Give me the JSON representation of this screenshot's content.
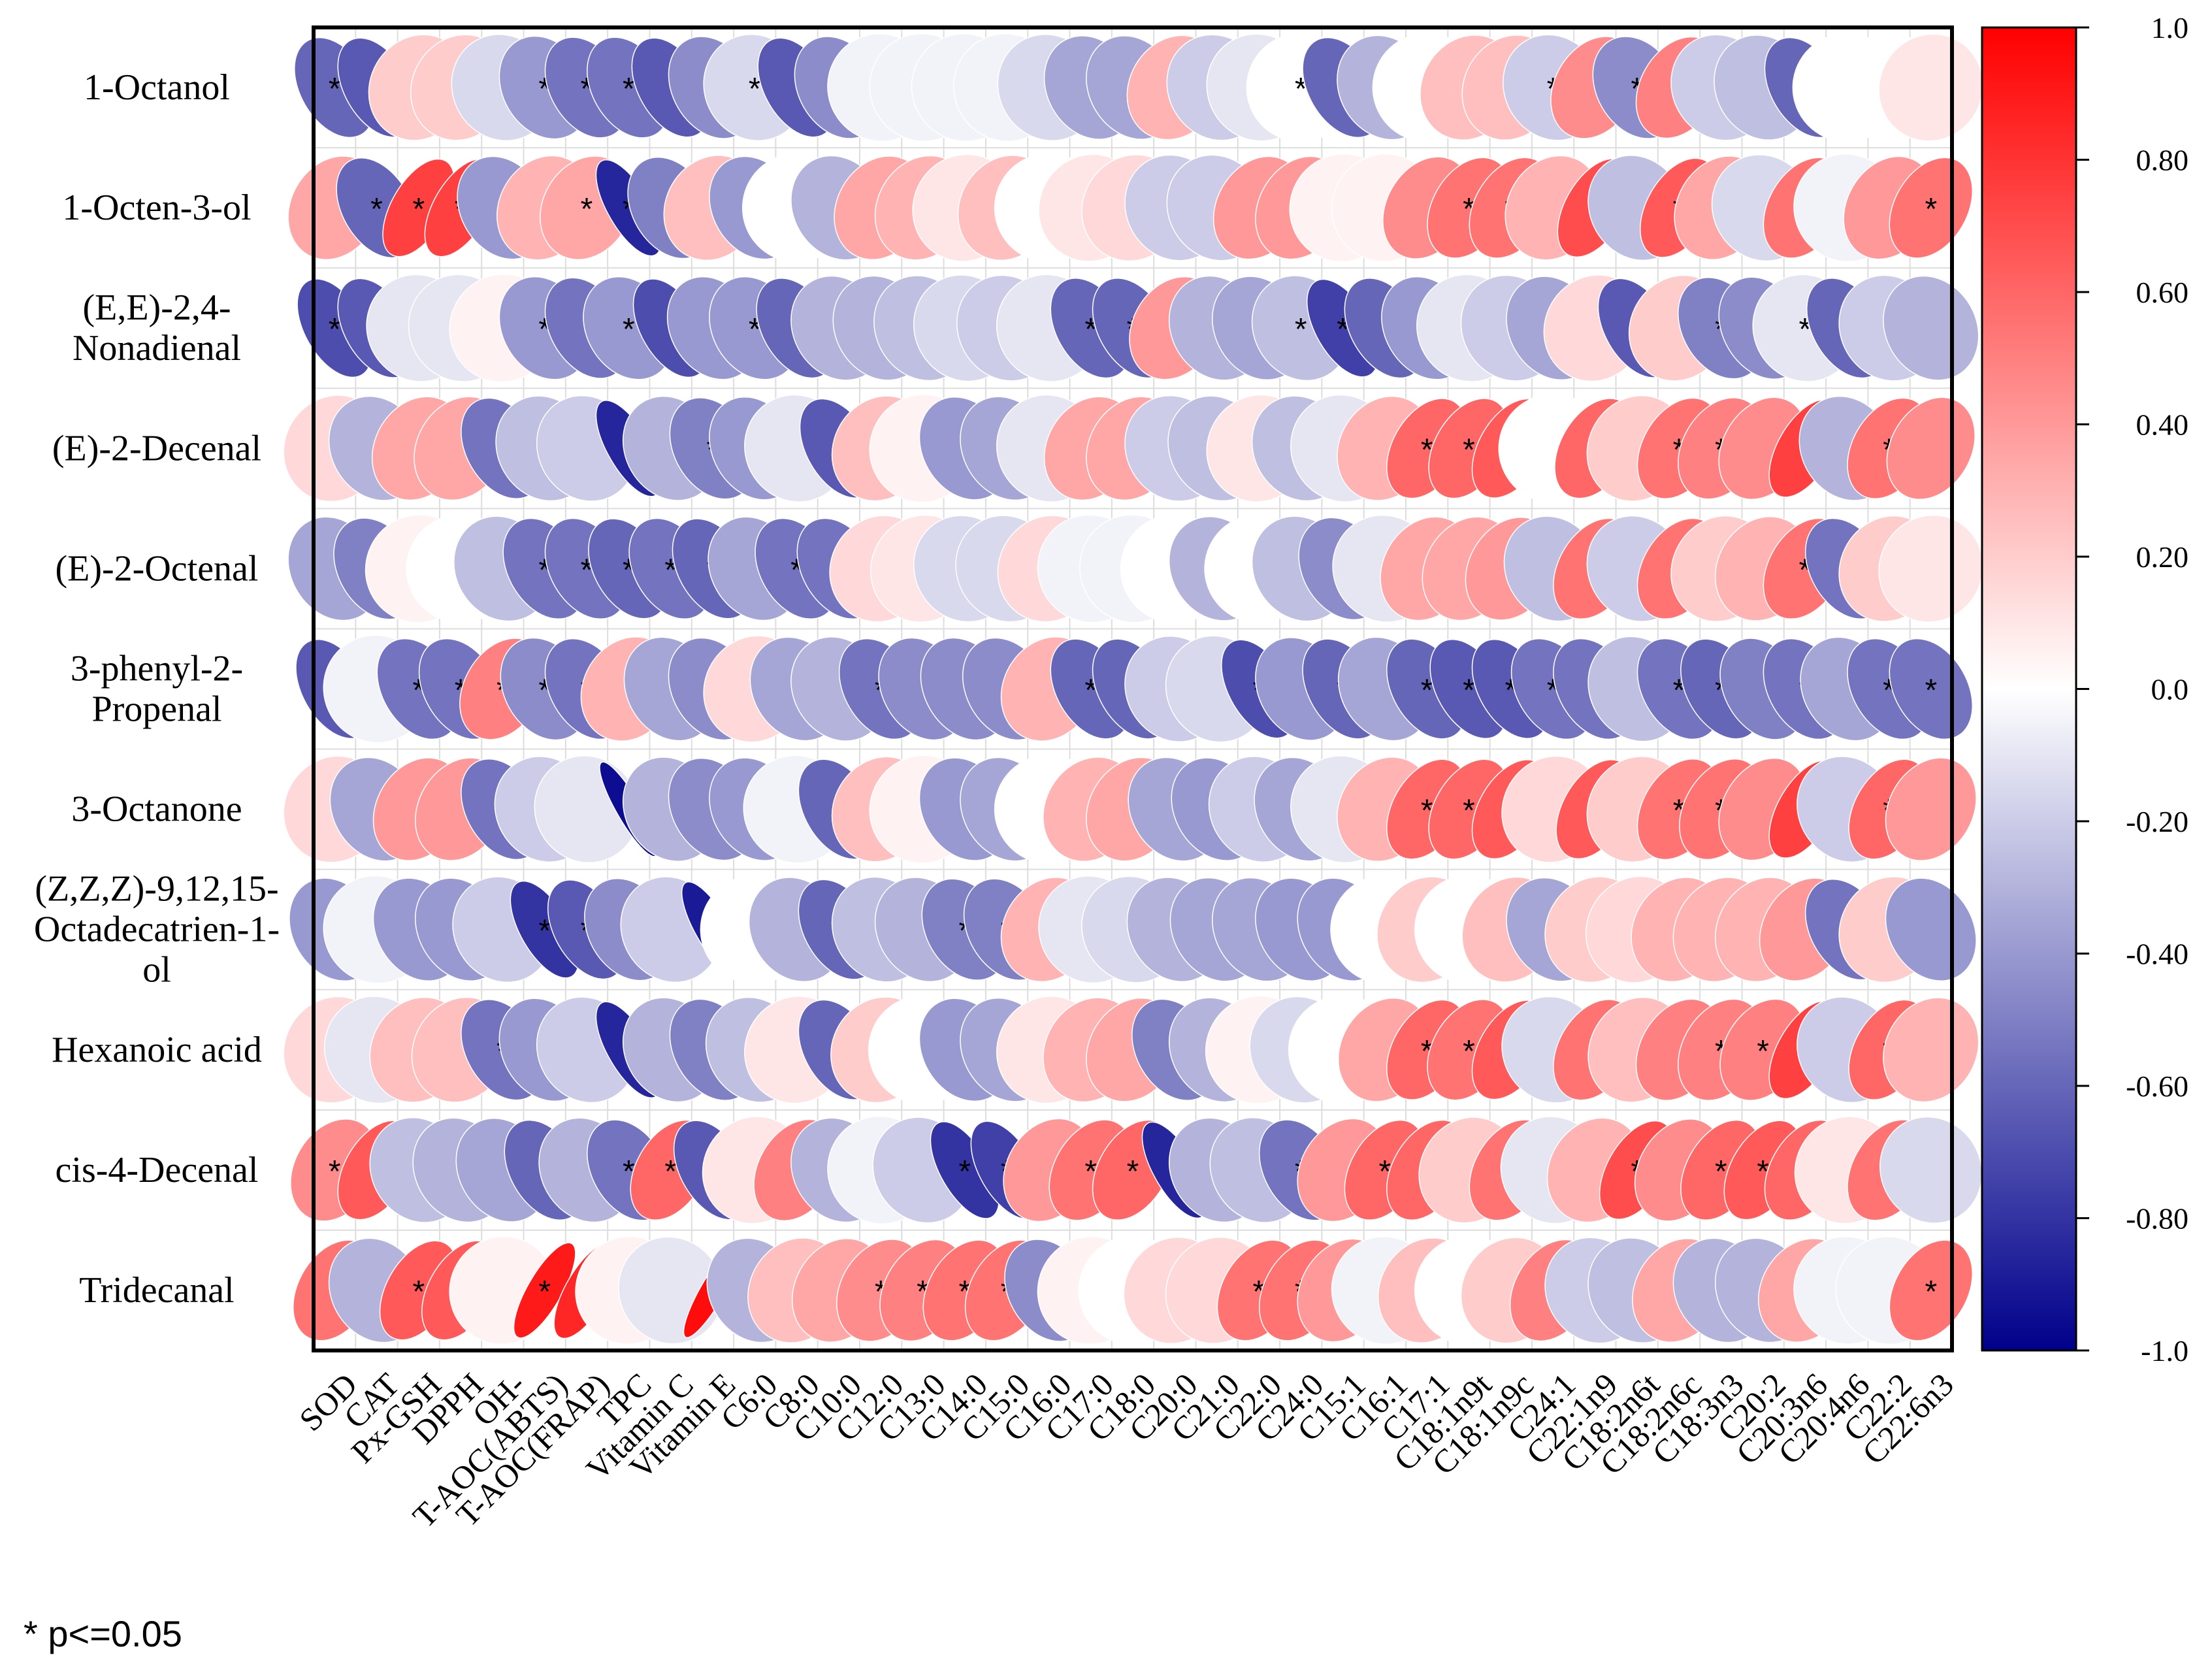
{
  "chart_data": {
    "type": "heatmap",
    "subtype": "correlation-ellipse",
    "rows": [
      "1-Octanol",
      "1-Octen-3-ol",
      "(E,E)-2,4-Nonadienal",
      "(E)-2-Decenal",
      "(E)-2-Octenal",
      "3-phenyl-2-Propenal",
      "3-Octanone",
      "(Z,Z,Z)-9,12,15-Octadecatrien-1-ol",
      "Hexanoic acid",
      "cis-4-Decenal",
      "Tridecanal"
    ],
    "row_label_lines": [
      [
        "1-Octanol"
      ],
      [
        "1-Octen-3-ol"
      ],
      [
        "(E,E)-2,4-",
        "Nonadienal"
      ],
      [
        "(E)-2-Decenal"
      ],
      [
        "(E)-2-Octenal"
      ],
      [
        "3-phenyl-2-",
        "Propenal"
      ],
      [
        "3-Octanone"
      ],
      [
        "(Z,Z,Z)-9,12,15-",
        "Octadecatrien-1-",
        "ol"
      ],
      [
        "Hexanoic acid"
      ],
      [
        "cis-4-Decenal"
      ],
      [
        "Tridecanal"
      ]
    ],
    "columns": [
      "SOD",
      "CAT",
      "Px-GSH",
      "DPPH",
      "OH-",
      "T-AOC(ABTS)",
      "T-AOC(FRAP)",
      "TPC",
      "Vitamin C",
      "Vitamin E",
      "C6:0",
      "C8:0",
      "C10:0",
      "C12:0",
      "C13:0",
      "C14:0",
      "C15:0",
      "C16:0",
      "C17:0",
      "C18:0",
      "C20:0",
      "C21:0",
      "C22:0",
      "C24:0",
      "C15:1",
      "C16:1",
      "C17:1",
      "C18:1n9t",
      "C18:1n9c",
      "C24:1",
      "C22:1n9",
      "C18:2n6t",
      "C18:2n6c",
      "C18:3n3",
      "C20:2",
      "C20:3n6",
      "C20:4n6",
      "C22:2",
      "C22:6n3"
    ],
    "values": [
      [
        -0.6,
        -0.65,
        0.2,
        0.2,
        -0.15,
        -0.4,
        -0.55,
        -0.55,
        -0.65,
        -0.45,
        -0.15,
        -0.65,
        -0.45,
        -0.05,
        -0.05,
        -0.05,
        -0.05,
        -0.15,
        -0.35,
        -0.35,
        0.3,
        -0.2,
        -0.1,
        0.0,
        -0.6,
        -0.3,
        0.0,
        0.25,
        0.25,
        -0.2,
        0.45,
        -0.45,
        0.5,
        -0.2,
        -0.25,
        -0.6,
        0.0,
        0.0,
        0.1
      ],
      [
        0.35,
        -0.6,
        0.75,
        0.75,
        -0.4,
        0.3,
        0.35,
        -0.85,
        -0.5,
        0.25,
        -0.4,
        0.0,
        -0.3,
        0.35,
        0.3,
        0.1,
        0.25,
        0.0,
        0.1,
        0.15,
        -0.2,
        -0.2,
        0.4,
        0.4,
        0.05,
        0.05,
        0.45,
        0.55,
        0.55,
        0.3,
        0.7,
        -0.25,
        0.65,
        0.35,
        -0.15,
        0.55,
        -0.05,
        0.4,
        0.55
      ],
      [
        -0.7,
        -0.65,
        -0.1,
        -0.1,
        0.05,
        -0.4,
        -0.55,
        -0.4,
        -0.7,
        -0.4,
        -0.4,
        -0.6,
        -0.3,
        -0.3,
        -0.25,
        -0.15,
        -0.2,
        -0.1,
        -0.6,
        -0.6,
        0.4,
        -0.3,
        -0.35,
        -0.25,
        -0.75,
        -0.6,
        -0.4,
        -0.1,
        -0.2,
        -0.35,
        0.15,
        -0.65,
        0.2,
        -0.5,
        -0.45,
        -0.1,
        -0.6,
        -0.2,
        -0.3
      ],
      [
        0.15,
        -0.3,
        0.35,
        0.35,
        -0.55,
        -0.25,
        -0.2,
        -0.85,
        -0.3,
        -0.5,
        -0.4,
        -0.1,
        -0.65,
        0.25,
        0.05,
        -0.4,
        -0.35,
        -0.1,
        0.35,
        0.35,
        -0.2,
        -0.25,
        0.1,
        -0.25,
        -0.1,
        0.3,
        0.6,
        0.6,
        0.65,
        0.0,
        0.6,
        0.2,
        0.55,
        0.5,
        0.45,
        0.75,
        -0.3,
        0.55,
        0.45
      ],
      [
        -0.35,
        -0.5,
        0.05,
        0.0,
        -0.25,
        -0.55,
        -0.55,
        -0.6,
        -0.55,
        -0.6,
        -0.35,
        -0.55,
        -0.55,
        0.15,
        0.1,
        -0.15,
        -0.15,
        0.15,
        -0.05,
        -0.05,
        0.0,
        -0.3,
        0.0,
        -0.25,
        -0.45,
        -0.1,
        0.35,
        0.35,
        0.4,
        -0.25,
        0.55,
        -0.2,
        0.55,
        0.2,
        0.3,
        0.55,
        -0.55,
        0.2,
        0.1
      ],
      [
        -0.65,
        -0.05,
        -0.55,
        -0.55,
        0.5,
        -0.45,
        -0.55,
        0.3,
        -0.35,
        -0.45,
        0.15,
        -0.35,
        -0.3,
        -0.55,
        -0.45,
        -0.45,
        -0.45,
        0.3,
        -0.6,
        -0.6,
        -0.2,
        -0.15,
        -0.7,
        -0.4,
        -0.6,
        -0.35,
        -0.6,
        -0.65,
        -0.65,
        -0.55,
        -0.55,
        -0.25,
        -0.55,
        -0.6,
        -0.5,
        -0.55,
        -0.35,
        -0.55,
        -0.55
      ],
      [
        0.15,
        -0.35,
        0.4,
        0.4,
        -0.55,
        -0.2,
        -0.1,
        -0.95,
        -0.3,
        -0.45,
        -0.4,
        -0.05,
        -0.6,
        0.25,
        0.05,
        -0.4,
        -0.35,
        0.0,
        0.3,
        0.35,
        -0.35,
        -0.4,
        -0.2,
        -0.35,
        -0.1,
        0.3,
        0.6,
        0.6,
        0.65,
        0.15,
        0.65,
        0.2,
        0.55,
        0.55,
        0.45,
        0.75,
        -0.2,
        0.6,
        0.4
      ],
      [
        -0.4,
        -0.05,
        -0.4,
        -0.4,
        -0.2,
        -0.8,
        -0.65,
        -0.45,
        -0.2,
        -0.9,
        0.0,
        -0.3,
        -0.6,
        -0.25,
        -0.3,
        -0.5,
        -0.5,
        0.3,
        -0.1,
        -0.15,
        -0.3,
        -0.35,
        -0.35,
        -0.4,
        -0.4,
        0.0,
        0.2,
        0.0,
        0.25,
        -0.35,
        0.2,
        0.15,
        0.3,
        0.3,
        0.3,
        0.4,
        -0.55,
        0.2,
        -0.4
      ],
      [
        0.15,
        -0.1,
        0.25,
        0.25,
        -0.55,
        -0.4,
        -0.2,
        -0.85,
        -0.3,
        -0.5,
        -0.25,
        0.1,
        -0.6,
        0.2,
        0.0,
        -0.4,
        -0.35,
        0.1,
        0.3,
        0.35,
        -0.5,
        -0.3,
        0.05,
        -0.15,
        0.0,
        0.35,
        0.6,
        0.55,
        0.65,
        -0.15,
        0.55,
        0.25,
        0.5,
        0.5,
        0.5,
        0.75,
        -0.2,
        0.6,
        0.3
      ],
      [
        0.45,
        0.65,
        -0.25,
        -0.3,
        -0.35,
        -0.6,
        -0.3,
        -0.55,
        0.6,
        -0.65,
        0.1,
        0.5,
        -0.3,
        -0.05,
        -0.2,
        -0.8,
        -0.75,
        0.4,
        0.55,
        0.6,
        -0.85,
        -0.3,
        -0.25,
        -0.55,
        0.4,
        0.6,
        0.6,
        0.2,
        0.55,
        -0.1,
        0.3,
        0.7,
        0.45,
        0.6,
        0.65,
        0.6,
        0.1,
        0.55,
        -0.15
      ],
      [
        0.55,
        -0.3,
        0.65,
        0.65,
        0.05,
        0.9,
        0.85,
        0.05,
        -0.1,
        0.95,
        -0.3,
        0.25,
        0.35,
        0.45,
        0.5,
        0.55,
        0.55,
        -0.45,
        0.05,
        0.0,
        0.15,
        0.15,
        0.55,
        0.55,
        0.4,
        -0.05,
        0.25,
        0.0,
        0.2,
        0.5,
        -0.2,
        -0.25,
        0.35,
        -0.3,
        -0.3,
        0.35,
        -0.05,
        -0.05,
        0.55
      ]
    ],
    "significant": [
      [
        0,
        1,
        5,
        6,
        7,
        10,
        23,
        29,
        31,
        35
      ],
      [
        1,
        2,
        3,
        6,
        7,
        27,
        28,
        30,
        32,
        35,
        38
      ],
      [
        0,
        1,
        5,
        7,
        10,
        18,
        19,
        23,
        24,
        31,
        33,
        35
      ],
      [
        4,
        7,
        9,
        12,
        26,
        27,
        28,
        30,
        32,
        33,
        35,
        37
      ],
      [
        1,
        5,
        6,
        7,
        8,
        9,
        11,
        12,
        30,
        32,
        35,
        36
      ],
      [
        0,
        2,
        3,
        4,
        5,
        6,
        13,
        18,
        19,
        22,
        24,
        26,
        27,
        28,
        29,
        30,
        32,
        33,
        35,
        37,
        38
      ],
      [
        4,
        7,
        12,
        26,
        27,
        28,
        30,
        32,
        33,
        35,
        37
      ],
      [
        5,
        6,
        7,
        9,
        12,
        15,
        16,
        36
      ],
      [
        4,
        7,
        9,
        12,
        20,
        26,
        27,
        28,
        30,
        33,
        34,
        35,
        37
      ],
      [
        0,
        1,
        5,
        7,
        8,
        9,
        11,
        15,
        16,
        18,
        19,
        20,
        23,
        25,
        26,
        28,
        31,
        33,
        34,
        35,
        37
      ],
      [
        0,
        2,
        3,
        5,
        6,
        9,
        13,
        14,
        15,
        16,
        22,
        23,
        29,
        38
      ]
    ],
    "colorbar": {
      "ticks": [
        "1.0",
        "0.80",
        "0.60",
        "0.40",
        "0.20",
        "0.0",
        "-0.20",
        "-0.40",
        "-0.60",
        "-0.80",
        "-1.0"
      ],
      "range": [
        -1.0,
        1.0
      ],
      "colors": {
        "positive": "#ff0000",
        "zero": "#ffffff",
        "negative": "#00008b"
      }
    },
    "significance_marker": "*",
    "footnote": "* p<=0.05"
  }
}
